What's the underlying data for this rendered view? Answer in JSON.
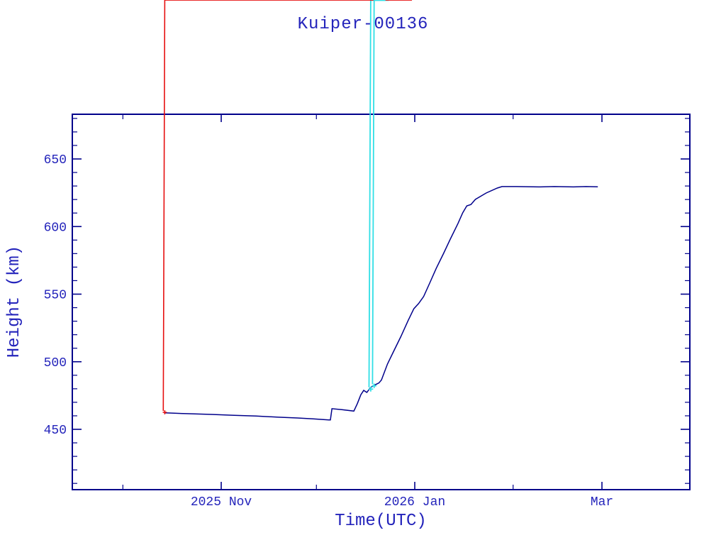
{
  "window": {
    "background": "#ffffff"
  },
  "chart_data": {
    "type": "scatter-line",
    "title": "Kuiper-00136",
    "xlabel": "Time(UTC)",
    "ylabel": "Height (km)",
    "grid": false,
    "legend": "none",
    "colors": {
      "axis": "#00008b",
      "text": "#2424bb",
      "connect_line": "#00008b",
      "primary_marker": "#e60f0f",
      "secondary_marker": "#30dfe6"
    },
    "x_axis": {
      "description": "time axis, day 0 = left frame edge (mid Sep 2025), about 4.475 px per day",
      "domain_days": [
        0,
        194.8
      ],
      "major_ticks": [
        {
          "day": 47,
          "label": "2025 Nov"
        },
        {
          "day": 108,
          "label": "2026 Jan"
        },
        {
          "day": 167,
          "label": "Mar"
        }
      ],
      "minor_tick_days": [
        16,
        77,
        139
      ]
    },
    "y_axis": {
      "lim": [
        405.4,
        683.1
      ],
      "major_ticks": [
        {
          "value": 450,
          "label": "450"
        },
        {
          "value": 500,
          "label": "500"
        },
        {
          "value": 550,
          "label": "550"
        },
        {
          "value": 600,
          "label": "600"
        },
        {
          "value": 650,
          "label": "650"
        }
      ],
      "minor_step": 10
    },
    "series": [
      {
        "name": "height-track",
        "marker": "asterisk",
        "color": "#e60f0f",
        "sample_step_days": 0.3,
        "points": [
          [
            29.3,
            462.2
          ],
          [
            36,
            461.6
          ],
          [
            44,
            461.0
          ],
          [
            51,
            460.4
          ],
          [
            58,
            459.8
          ],
          [
            65,
            459.0
          ],
          [
            71,
            458.4
          ],
          [
            76,
            457.7
          ],
          [
            80.9,
            457.0
          ],
          [
            81.4,
            457.0
          ],
          [
            81.9,
            465.3
          ],
          [
            85,
            464.6
          ],
          [
            88.8,
            463.5
          ],
          [
            89.9,
            469.0
          ],
          [
            91.0,
            475.5
          ],
          [
            91.9,
            478.8
          ],
          [
            92.9,
            477.3
          ],
          [
            94.1,
            481.0
          ],
          [
            95.6,
            483.0
          ],
          [
            96.7,
            484.3
          ],
          [
            97.5,
            486.5
          ],
          [
            99.4,
            498.3
          ],
          [
            101.4,
            508.0
          ],
          [
            103.6,
            518.5
          ],
          [
            105.9,
            530.4
          ],
          [
            107.7,
            539.2
          ],
          [
            109.2,
            543.0
          ],
          [
            110.8,
            548.2
          ],
          [
            112.6,
            557.6
          ],
          [
            114.8,
            569.2
          ],
          [
            117.1,
            580.2
          ],
          [
            119.3,
            591.2
          ],
          [
            121.6,
            602.2
          ],
          [
            123.1,
            610.1
          ],
          [
            124.4,
            615.3
          ],
          [
            125.7,
            616.3
          ],
          [
            127.1,
            620.1
          ],
          [
            130.5,
            624.8
          ],
          [
            134.0,
            628.5
          ],
          [
            135.5,
            629.6
          ],
          [
            140,
            629.6
          ],
          [
            147,
            629.3
          ],
          [
            152,
            629.6
          ],
          [
            158,
            629.3
          ],
          [
            162,
            629.6
          ],
          [
            165.7,
            629.4
          ]
        ]
      },
      {
        "name": "secondary-samples",
        "marker": "asterisk",
        "color": "#30dfe6",
        "ranges": [
          {
            "from": 94.0,
            "to": 136.0,
            "step": 0.8
          },
          {
            "from": 137.0,
            "to": 165.5,
            "step": 2.6
          }
        ],
        "singles_under": [
          69.4
        ],
        "singles_over": [
          95.3,
          100.4,
          104.9,
          108.7,
          112.2,
          116.5,
          120.3,
          124.6,
          128.5
        ]
      }
    ]
  }
}
